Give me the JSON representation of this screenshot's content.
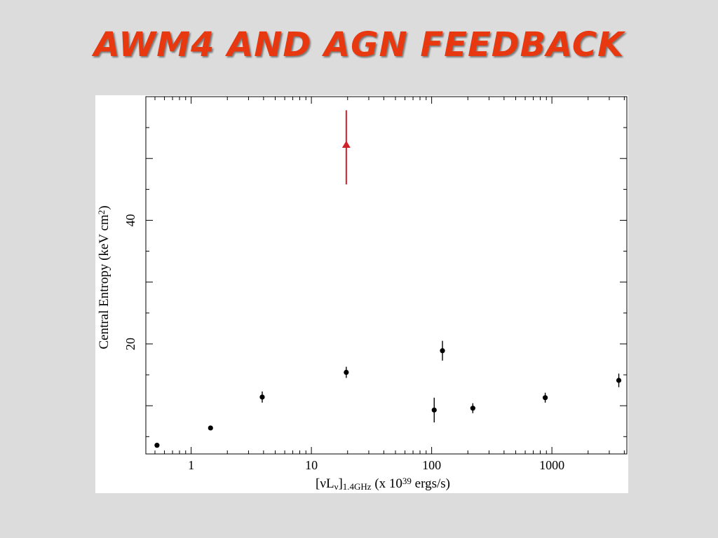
{
  "slide": {
    "title": "AWM4 AND AGN FEEDBACK"
  },
  "colors": {
    "background": "#dcdcdc",
    "title": "#e8380f",
    "points": "#000000",
    "highlight": "#d0202a"
  },
  "chart_data": {
    "type": "scatter",
    "title": "",
    "x_scale": "log",
    "xlim": [
      0.42,
      4200
    ],
    "ylim": [
      2.2,
      60
    ],
    "x_ticks": [
      1,
      10,
      100,
      1000
    ],
    "x_tick_labels": [
      "1",
      "10",
      "100",
      "1000"
    ],
    "y_ticks": [
      20,
      40
    ],
    "y_tick_labels": [
      "20",
      "40"
    ],
    "xlabel": {
      "parts": [
        {
          "t": "[νL",
          "s": "n"
        },
        {
          "t": "ν",
          "s": "sub"
        },
        {
          "t": "]",
          "s": "n"
        },
        {
          "t": "1.4GHz",
          "s": "sub"
        },
        {
          "t": " (x 10",
          "s": "n"
        },
        {
          "t": "39",
          "s": "sup"
        },
        {
          "t": " ergs/s)",
          "s": "n"
        }
      ]
    },
    "ylabel": {
      "parts": [
        {
          "t": "Central Entropy (keV cm",
          "s": "n"
        },
        {
          "t": "2",
          "s": "sup"
        },
        {
          "t": ")",
          "s": "n"
        }
      ]
    },
    "grid": false,
    "series": [
      {
        "marker": "circle",
        "color": "#000000",
        "points": [
          {
            "x": 0.52,
            "y": 3.6,
            "err": [
              0.3,
              0.3
            ]
          },
          {
            "x": 1.45,
            "y": 6.4,
            "err": [
              0.3,
              0.3
            ]
          },
          {
            "x": 3.9,
            "y": 11.4,
            "err": [
              0.9,
              0.9
            ]
          },
          {
            "x": 19.5,
            "y": 15.4,
            "err": [
              0.9,
              0.9
            ]
          },
          {
            "x": 105,
            "y": 9.3,
            "err": [
              2.0,
              2.0
            ]
          },
          {
            "x": 123,
            "y": 18.9,
            "err": [
              1.6,
              1.6
            ]
          },
          {
            "x": 220,
            "y": 9.6,
            "err": [
              0.8,
              0.8
            ]
          },
          {
            "x": 880,
            "y": 11.3,
            "err": [
              0.8,
              0.8
            ]
          },
          {
            "x": 3600,
            "y": 14.1,
            "err": [
              1.1,
              1.1
            ]
          }
        ]
      },
      {
        "marker": "triangle",
        "color": "#d0202a",
        "points": [
          {
            "x": 19.5,
            "y": 52.2,
            "err": [
              6.4,
              5.6
            ]
          }
        ]
      }
    ]
  }
}
